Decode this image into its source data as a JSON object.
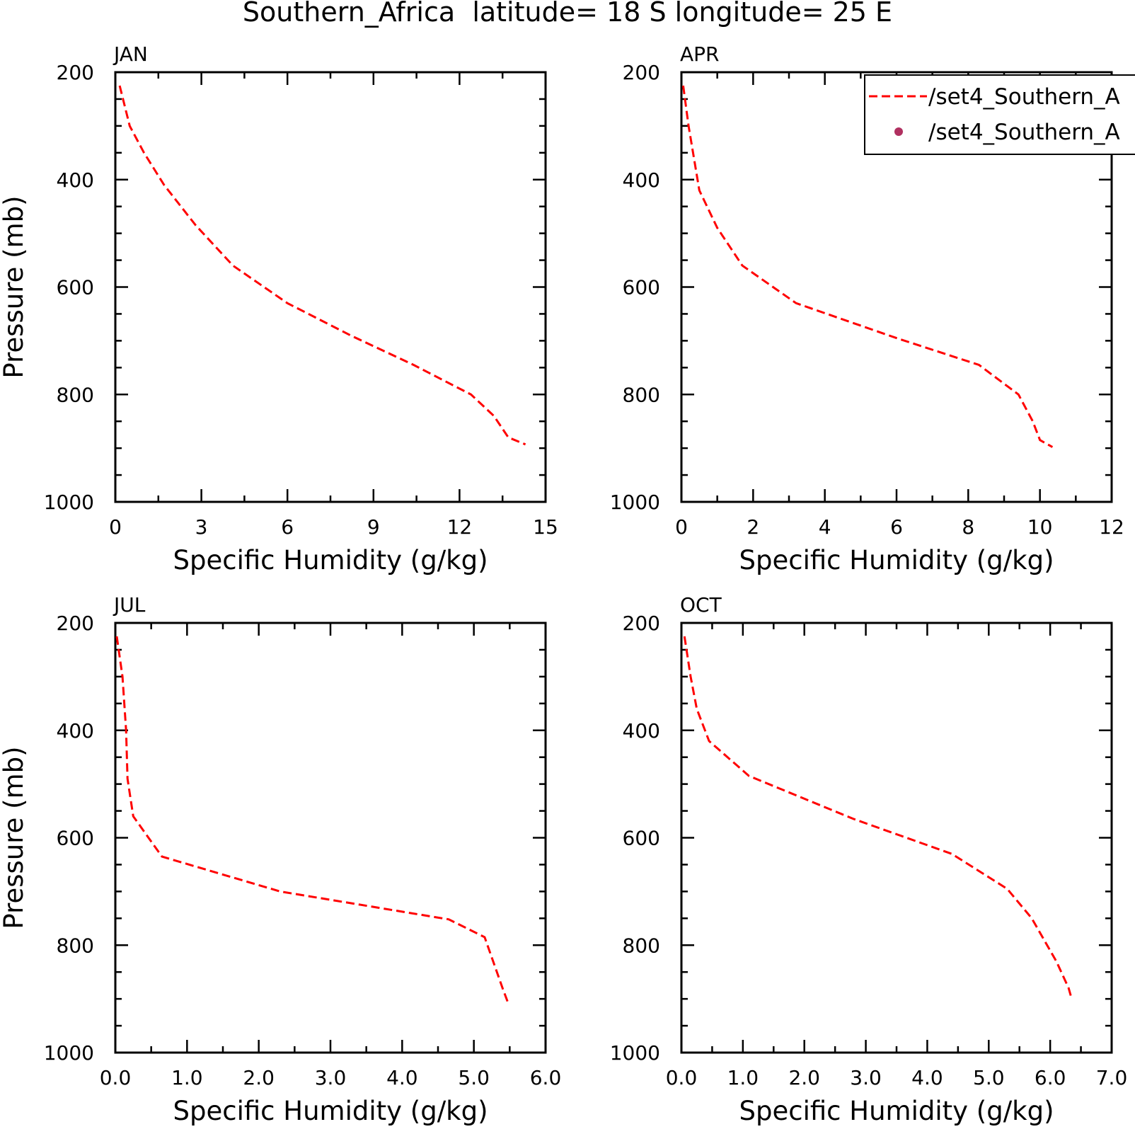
{
  "figure": {
    "title": "Southern_Africa  latitude= 18 S longitude= 25 E"
  },
  "legend": {
    "position": "top-right (APR panel), clipped by figure edge",
    "entries": [
      {
        "label": "/set4_Southern_A",
        "style": "dashed-line",
        "color": "#ff0000"
      },
      {
        "label": "/set4_Southern_A",
        "style": "dot",
        "color": "#b03060"
      }
    ]
  },
  "chart_data": [
    {
      "type": "line",
      "panel_label": "JAN",
      "xlabel": "Specific Humidity (g/kg)",
      "ylabel": "Pressure (mb)",
      "xlim": [
        0,
        15
      ],
      "ylim": [
        200,
        1000
      ],
      "y_inverted": true,
      "xticks": [
        "0",
        "3",
        "6",
        "9",
        "12",
        "15"
      ],
      "yticks": [
        "200",
        "400",
        "600",
        "800",
        "1000"
      ],
      "series": [
        {
          "color": "#ff0000",
          "dash": true,
          "x": [
            0.15,
            0.5,
            1.0,
            1.7,
            2.8,
            4.1,
            6.0,
            8.2,
            10.4,
            12.4,
            13.2,
            13.7,
            14.3
          ],
          "y": [
            225,
            300,
            350,
            410,
            485,
            560,
            630,
            690,
            745,
            800,
            840,
            880,
            893
          ]
        }
      ]
    },
    {
      "type": "line",
      "panel_label": "APR",
      "xlabel": "Specific Humidity (g/kg)",
      "ylabel": "",
      "xlim": [
        0,
        12
      ],
      "ylim": [
        200,
        1000
      ],
      "y_inverted": true,
      "xticks": [
        "0",
        "2",
        "4",
        "6",
        "8",
        "10",
        "12"
      ],
      "yticks": [
        "200",
        "400",
        "600",
        "800",
        "1000"
      ],
      "series": [
        {
          "color": "#ff0000",
          "dash": true,
          "x": [
            0.05,
            0.2,
            0.5,
            1.0,
            1.7,
            3.2,
            6.0,
            8.3,
            9.4,
            9.8,
            10.0,
            10.35
          ],
          "y": [
            225,
            300,
            420,
            490,
            560,
            630,
            695,
            745,
            800,
            850,
            885,
            898
          ]
        }
      ]
    },
    {
      "type": "line",
      "panel_label": "JUL",
      "xlabel": "Specific Humidity (g/kg)",
      "ylabel": "Pressure (mb)",
      "xlim": [
        0,
        6
      ],
      "ylim": [
        200,
        1000
      ],
      "y_inverted": true,
      "xticks": [
        "0.0",
        "1.0",
        "2.0",
        "3.0",
        "4.0",
        "5.0",
        "6.0"
      ],
      "yticks": [
        "200",
        "400",
        "600",
        "800",
        "1000"
      ],
      "series": [
        {
          "color": "#ff0000",
          "dash": true,
          "x": [
            0.02,
            0.1,
            0.15,
            0.17,
            0.25,
            0.65,
            2.3,
            4.65,
            5.15,
            5.4,
            5.47
          ],
          "y": [
            225,
            300,
            400,
            490,
            560,
            635,
            700,
            752,
            785,
            880,
            905
          ]
        }
      ]
    },
    {
      "type": "line",
      "panel_label": "OCT",
      "xlabel": "Specific Humidity (g/kg)",
      "ylabel": "",
      "xlim": [
        0,
        7
      ],
      "ylim": [
        200,
        1000
      ],
      "y_inverted": true,
      "xticks": [
        "0.0",
        "1.0",
        "2.0",
        "3.0",
        "4.0",
        "5.0",
        "6.0",
        "7.0"
      ],
      "yticks": [
        "200",
        "400",
        "600",
        "800",
        "1000"
      ],
      "series": [
        {
          "color": "#ff0000",
          "dash": true,
          "x": [
            0.05,
            0.15,
            0.25,
            0.45,
            1.1,
            2.8,
            4.4,
            5.3,
            5.7,
            6.1,
            6.3,
            6.35
          ],
          "y": [
            225,
            300,
            360,
            420,
            485,
            565,
            630,
            695,
            750,
            830,
            880,
            900
          ]
        }
      ]
    }
  ]
}
